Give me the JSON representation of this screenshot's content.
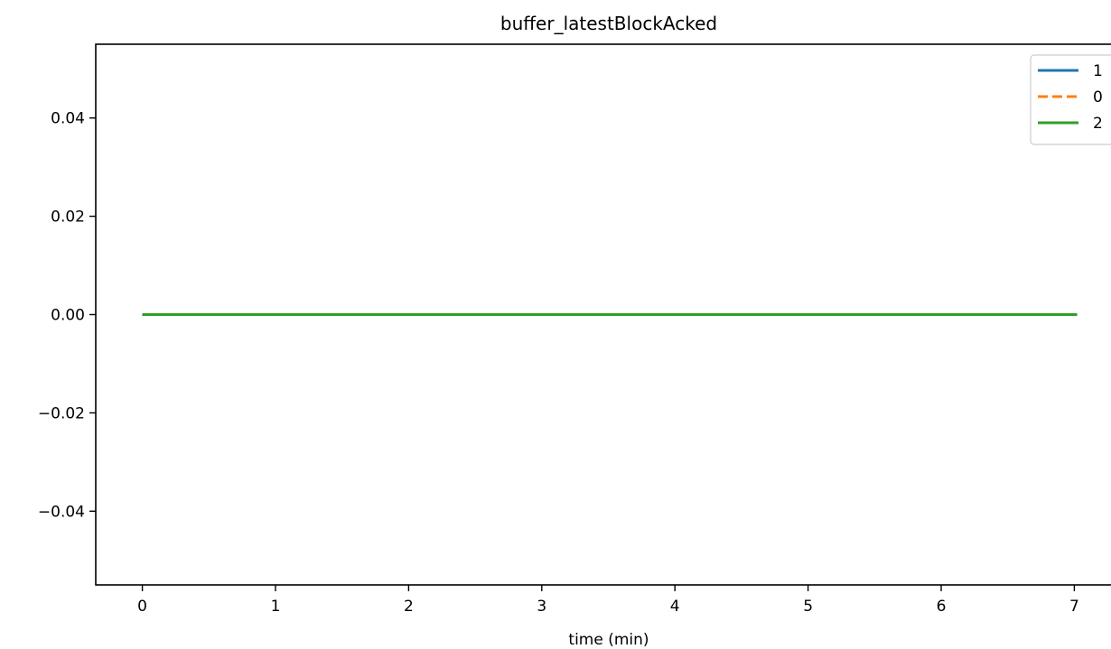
{
  "chart_data": {
    "type": "line",
    "title": "buffer_latestBlockAcked",
    "xlabel": "time (min)",
    "ylabel": "",
    "xlim": [
      -0.35,
      7.35
    ],
    "ylim": [
      -0.055,
      0.055
    ],
    "xticks": [
      0,
      1,
      2,
      3,
      4,
      5,
      6,
      7
    ],
    "xtick_labels": [
      "0",
      "1",
      "2",
      "3",
      "4",
      "5",
      "6",
      "7"
    ],
    "yticks": [
      0.04,
      0.02,
      0.0,
      -0.02,
      -0.04
    ],
    "ytick_labels": [
      "0.04",
      "0.02",
      "0.00",
      "−0.02",
      "−0.04"
    ],
    "grid": false,
    "legend_position": "top-right",
    "series": [
      {
        "name": "1",
        "color": "#1f77b4",
        "dash": "solid",
        "x": [
          0,
          7.02
        ],
        "y": [
          0,
          0
        ]
      },
      {
        "name": "0",
        "color": "#ff7f0e",
        "dash": "dashed",
        "x": [
          0,
          7.05
        ],
        "y": [
          0,
          0
        ]
      },
      {
        "name": "2",
        "color": "#2ca02c",
        "dash": "solid",
        "x": [
          0,
          7.02
        ],
        "y": [
          0,
          0
        ]
      }
    ]
  }
}
